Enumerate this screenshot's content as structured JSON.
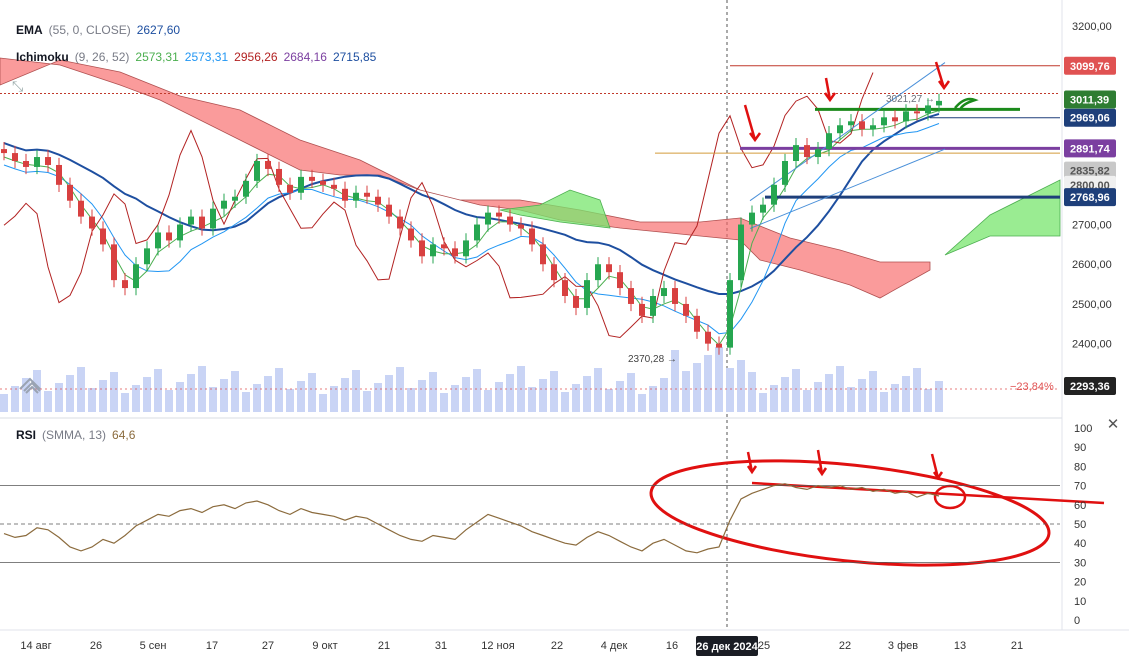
{
  "legend": {
    "ema": {
      "name": "EMA",
      "params": "(55, 0, CLOSE)",
      "value": "2627,60",
      "color": "#1e4fa0"
    },
    "ichimoku": {
      "name": "Ichimoku",
      "params": "(9, 26, 52)",
      "values": [
        {
          "text": "2573,31",
          "color": "#4caf50"
        },
        {
          "text": "2573,31",
          "color": "#2196f3"
        },
        {
          "text": "2956,26",
          "color": "#b22222"
        },
        {
          "text": "2684,16",
          "color": "#7b3fa0"
        },
        {
          "text": "2715,85",
          "color": "#1e4fa0"
        }
      ]
    },
    "rsi": {
      "name": "RSI",
      "params": "(SMMA, 13)",
      "value": "64,6",
      "color": "#8b6b3d"
    }
  },
  "price_axis": {
    "ticks": [
      "3200,00",
      "2700,00",
      "2600,00",
      "2500,00",
      "2400,00"
    ],
    "badges": [
      {
        "text": "3099,76",
        "price": 3099.76,
        "bg": "#e05252"
      },
      {
        "text": "3011,39",
        "price": 3015,
        "bg": "#2e7d32"
      },
      {
        "text": "2969,06",
        "price": 2969.06,
        "bg": "#1e3f7a"
      },
      {
        "text": "2891,74",
        "price": 2891.74,
        "bg": "#7b3fa0"
      },
      {
        "text": "2835,82",
        "price": 2835.82,
        "bg": "#c8c8c8"
      },
      {
        "text": "2800,00",
        "price": 2800,
        "bg": "#f0f0f0"
      },
      {
        "text": "2768,96",
        "price": 2768.96,
        "bg": "#1e3f7a"
      },
      {
        "text": "2293,36",
        "price": 2293.36,
        "bg": "#222222"
      }
    ],
    "pct_label": "−23,84%"
  },
  "rsi_axis": {
    "ticks": [
      "100",
      "90",
      "80",
      "70",
      "60",
      "50",
      "40",
      "30",
      "20",
      "10",
      "0"
    ]
  },
  "time_axis": {
    "ticks": [
      "14 авг",
      "26",
      "5 сен",
      "17",
      "27",
      "9 окт",
      "21",
      "31",
      "12 ноя",
      "22",
      "4 дек",
      "16",
      "25",
      "22",
      "3 фев",
      "13",
      "21"
    ],
    "highlight": "26 дек 2024"
  },
  "annotations": {
    "high_label": "3021,27 →",
    "low_label": "2370,28 →"
  },
  "chart_data": {
    "type": "candlestick",
    "instrument_series": [
      {
        "name": "EMA (55, 0, CLOSE)",
        "last": 2627.6
      },
      {
        "name": "Ichimoku (9, 26, 52)",
        "values": [
          2573.31,
          2573.31,
          2956.26,
          2684.16,
          2715.85
        ]
      },
      {
        "name": "RSI (SMMA, 13)",
        "last": 64.6
      }
    ],
    "price_ylim": [
      2293.36,
      3200
    ],
    "price_levels": [
      3099.76,
      3011.39,
      2969.06,
      2891.74,
      2835.82,
      2768.96
    ],
    "annotated_high": 3021.27,
    "annotated_low": 2370.28,
    "close": [
      2880,
      2860,
      2845,
      2870,
      2850,
      2800,
      2760,
      2720,
      2690,
      2650,
      2560,
      2540,
      2600,
      2640,
      2680,
      2660,
      2700,
      2720,
      2690,
      2740,
      2760,
      2770,
      2810,
      2860,
      2840,
      2800,
      2780,
      2820,
      2810,
      2800,
      2790,
      2760,
      2780,
      2770,
      2750,
      2720,
      2690,
      2660,
      2620,
      2650,
      2640,
      2620,
      2660,
      2700,
      2730,
      2720,
      2700,
      2690,
      2650,
      2600,
      2560,
      2520,
      2490,
      2560,
      2600,
      2580,
      2540,
      2500,
      2470,
      2520,
      2540,
      2500,
      2470,
      2430,
      2400,
      2390,
      2560,
      2700,
      2730,
      2750,
      2800,
      2860,
      2900,
      2870,
      2890,
      2930,
      2950,
      2960,
      2940,
      2950,
      2970,
      2960,
      2985,
      2980,
      3000,
      3011.39
    ],
    "rsi": [
      45,
      43,
      44,
      48,
      47,
      43,
      38,
      36,
      38,
      42,
      40,
      44,
      49,
      52,
      55,
      54,
      57,
      58,
      56,
      59,
      60,
      58,
      61,
      62,
      60,
      57,
      55,
      58,
      56,
      55,
      54,
      52,
      54,
      53,
      50,
      47,
      44,
      42,
      41,
      44,
      43,
      42,
      47,
      51,
      55,
      53,
      51,
      49,
      46,
      44,
      42,
      40,
      39,
      43,
      46,
      44,
      41,
      38,
      36,
      40,
      42,
      39,
      36,
      35,
      37,
      38,
      52,
      63,
      66,
      68,
      70,
      71,
      69,
      68,
      70,
      69,
      70,
      68,
      69,
      67,
      68,
      66,
      67,
      64,
      66,
      64.6
    ],
    "rsi_ylim": [
      0,
      100
    ],
    "rsi_bands": [
      30,
      50,
      70
    ]
  }
}
